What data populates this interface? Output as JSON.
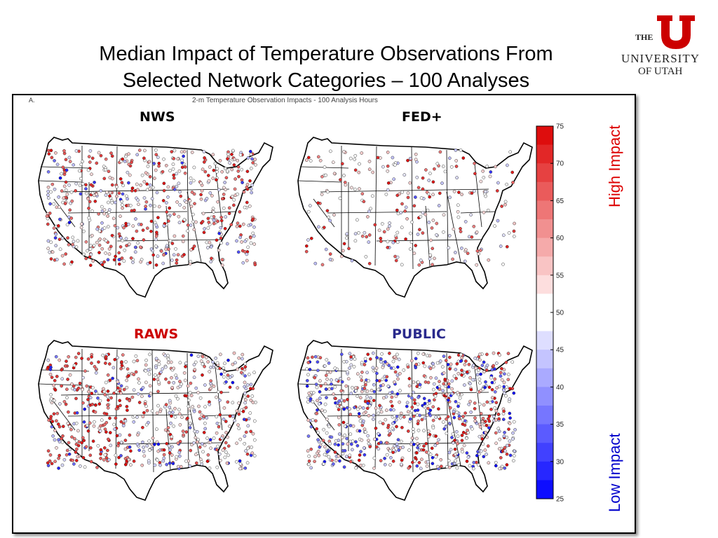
{
  "slide": {
    "title_line1": "Median Impact of Temperature Observations From",
    "title_line2": "Selected Network Categories – 100 Analyses"
  },
  "logo": {
    "the": "THE",
    "university": "UNIVERSITY",
    "of_utah": "OF UTAH",
    "color": "#cc0000"
  },
  "figure": {
    "panel_label": "A.",
    "subtitle": "2-m Temperature Observation Impacts - 100 Analysis Hours",
    "panels": [
      {
        "name": "NWS",
        "color": "#000000"
      },
      {
        "name": "FED+",
        "color": "#000000"
      },
      {
        "name": "RAWS",
        "color": "#cc0000"
      },
      {
        "name": "PUBLIC",
        "color": "#2a2a8c"
      }
    ]
  },
  "colorbar": {
    "ticks": [
      "75",
      "70",
      "65",
      "60",
      "55",
      "50",
      "45",
      "40",
      "35",
      "30",
      "25"
    ],
    "min": 25,
    "max": 75,
    "high_label": "High Impact",
    "low_label": "Low Impact",
    "high_color": "#dd0000",
    "low_color": "#0000cc"
  }
}
